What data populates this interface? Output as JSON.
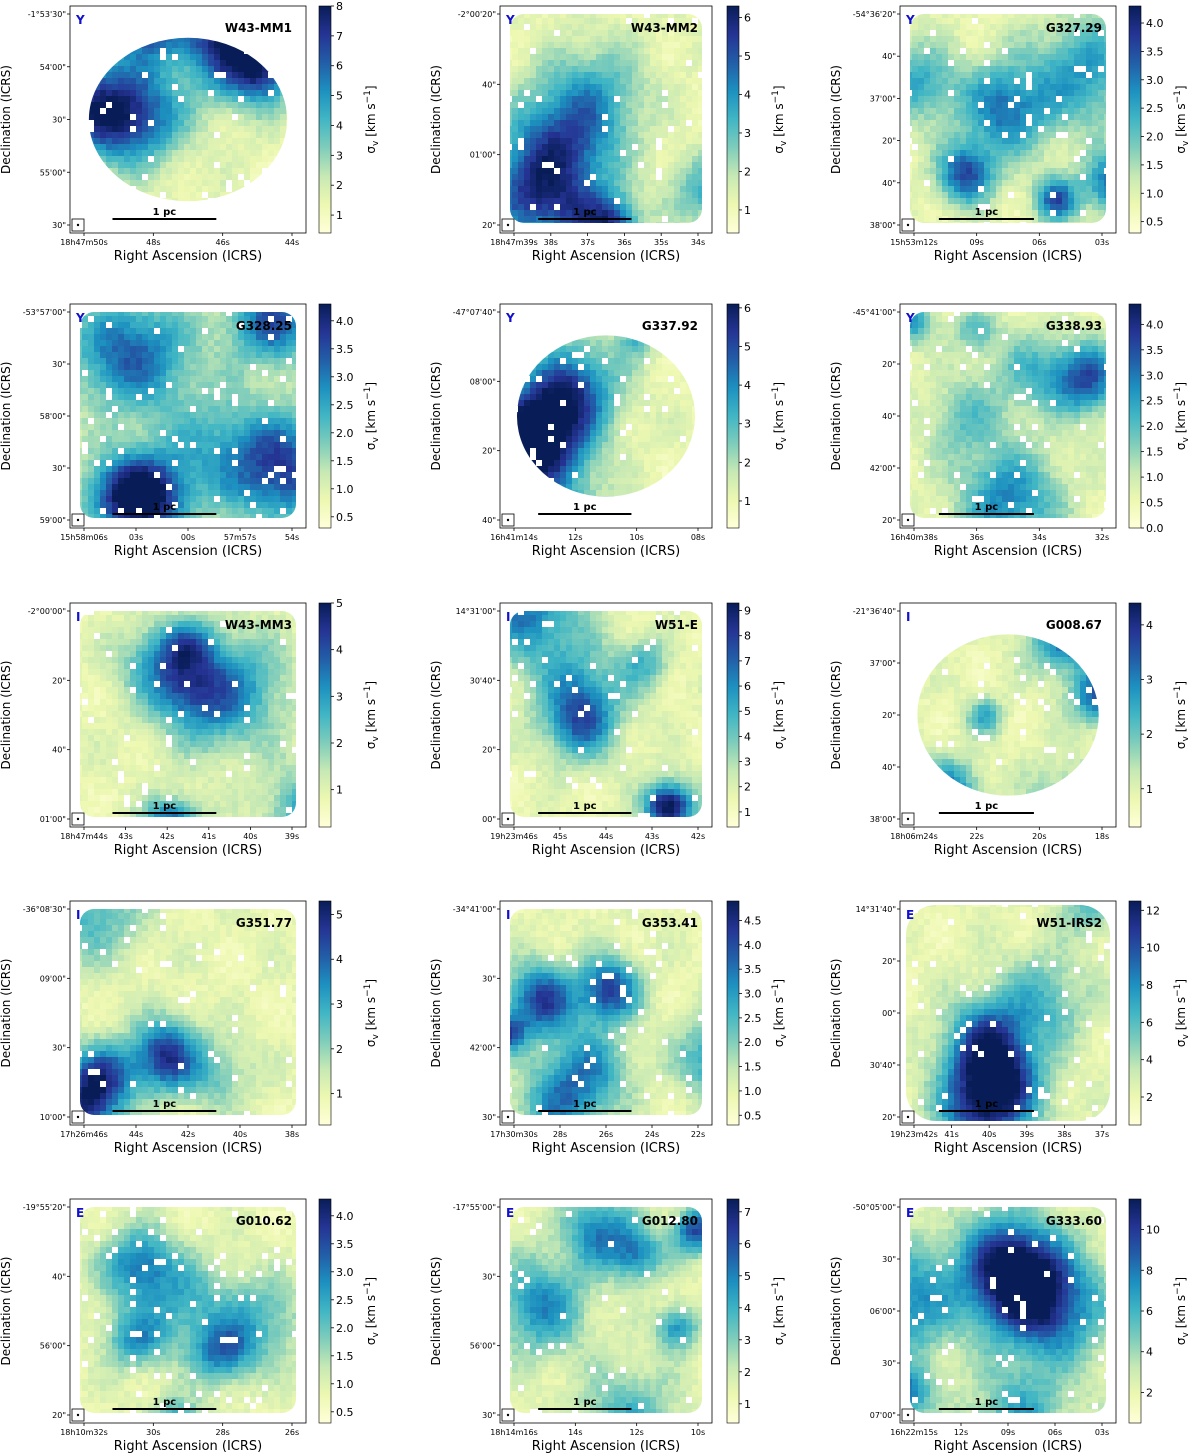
{
  "figure": {
    "x_axis_label": "Right Ascension (ICRS)",
    "y_axis_label": "Declination (ICRS)",
    "colorbar_label_symbol": "σ",
    "colorbar_label_sub": "v",
    "colorbar_label_units": "[km s",
    "colorbar_label_exp": "−1",
    "colorbar_label_close": "]",
    "scale_bar_label": "1 pc",
    "colormap": "YlGnBu",
    "colormap_stops": [
      "#ffffd9",
      "#edf8b1",
      "#c7e9b4",
      "#7fcdbb",
      "#41b6c4",
      "#1d91c0",
      "#225ea8",
      "#253494",
      "#081d58"
    ],
    "stage_color": "#1111cc"
  },
  "chart_data": [
    {
      "type": "heatmap",
      "title": "W43-MM1",
      "stage": "Y",
      "quantity": "velocity dispersion",
      "units": "km s^-1",
      "colorbar_ticks": [
        "1",
        "2",
        "3",
        "4",
        "5",
        "6",
        "7",
        "8"
      ],
      "colorbar_range": [
        0.4,
        8
      ],
      "ra_ticks": [
        "18h47m50s",
        "48s",
        "46s",
        "44s"
      ],
      "dec_ticks": [
        "-1°53'30\"",
        "54'00\"",
        "30\"",
        "55'00\"",
        "30\""
      ]
    },
    {
      "type": "heatmap",
      "title": "W43-MM2",
      "stage": "Y",
      "quantity": "velocity dispersion",
      "units": "km s^-1",
      "colorbar_ticks": [
        "1",
        "2",
        "3",
        "4",
        "5",
        "6"
      ],
      "colorbar_range": [
        0.4,
        6.3
      ],
      "ra_ticks": [
        "18h47m39s",
        "38s",
        "37s",
        "36s",
        "35s",
        "34s"
      ],
      "dec_ticks": [
        "-2°00'20\"",
        "40\"",
        "01'00\"",
        "20\""
      ]
    },
    {
      "type": "heatmap",
      "title": "G327.29",
      "stage": "Y",
      "quantity": "velocity dispersion",
      "units": "km s^-1",
      "colorbar_ticks": [
        "0.5",
        "1.0",
        "1.5",
        "2.0",
        "2.5",
        "3.0",
        "3.5",
        "4.0"
      ],
      "colorbar_range": [
        0.3,
        4.3
      ],
      "ra_ticks": [
        "15h53m12s",
        "09s",
        "06s",
        "03s"
      ],
      "dec_ticks": [
        "-54°36'20\"",
        "40\"",
        "37'00\"",
        "20\"",
        "40\"",
        "38'00\""
      ]
    },
    {
      "type": "heatmap",
      "title": "G328.25",
      "stage": "Y",
      "quantity": "velocity dispersion",
      "units": "km s^-1",
      "colorbar_ticks": [
        "0.5",
        "1.0",
        "1.5",
        "2.0",
        "2.5",
        "3.0",
        "3.5",
        "4.0"
      ],
      "colorbar_range": [
        0.3,
        4.3
      ],
      "ra_ticks": [
        "15h58m06s",
        "03s",
        "00s",
        "57m57s",
        "54s"
      ],
      "dec_ticks": [
        "-53°57'00\"",
        "30\"",
        "58'00\"",
        "30\"",
        "59'00\""
      ]
    },
    {
      "type": "heatmap",
      "title": "G337.92",
      "stage": "Y",
      "quantity": "velocity dispersion",
      "units": "km s^-1",
      "colorbar_ticks": [
        "1",
        "2",
        "3",
        "4",
        "5",
        "6"
      ],
      "colorbar_range": [
        0.3,
        6.1
      ],
      "ra_ticks": [
        "16h41m14s",
        "12s",
        "10s",
        "08s"
      ],
      "dec_ticks": [
        "-47°07'40\"",
        "08'00\"",
        "20\"",
        "40\""
      ]
    },
    {
      "type": "heatmap",
      "title": "G338.93",
      "stage": "Y",
      "quantity": "velocity dispersion",
      "units": "km s^-1",
      "colorbar_ticks": [
        "0.0",
        "0.5",
        "1.0",
        "1.5",
        "2.0",
        "2.5",
        "3.0",
        "3.5",
        "4.0"
      ],
      "colorbar_range": [
        0,
        4.4
      ],
      "ra_ticks": [
        "16h40m38s",
        "36s",
        "34s",
        "32s"
      ],
      "dec_ticks": [
        "-45°41'00\"",
        "20\"",
        "40\"",
        "42'00\"",
        "20\""
      ]
    },
    {
      "type": "heatmap",
      "title": "W43-MM3",
      "stage": "I",
      "quantity": "velocity dispersion",
      "units": "km s^-1",
      "colorbar_ticks": [
        "1",
        "2",
        "3",
        "4",
        "5"
      ],
      "colorbar_range": [
        0.2,
        5
      ],
      "ra_ticks": [
        "18h47m44s",
        "43s",
        "42s",
        "41s",
        "40s",
        "39s"
      ],
      "dec_ticks": [
        "-2°00'00\"",
        "20\"",
        "40\"",
        "01'00\""
      ]
    },
    {
      "type": "heatmap",
      "title": "W51-E",
      "stage": "I",
      "quantity": "velocity dispersion",
      "units": "km s^-1",
      "colorbar_ticks": [
        "1",
        "2",
        "3",
        "4",
        "5",
        "6",
        "7",
        "8",
        "9"
      ],
      "colorbar_range": [
        0.4,
        9.3
      ],
      "ra_ticks": [
        "19h23m46s",
        "45s",
        "44s",
        "43s",
        "42s"
      ],
      "dec_ticks": [
        "14°31'00\"",
        "30'40\"",
        "20\"",
        "00\""
      ]
    },
    {
      "type": "heatmap",
      "title": "G008.67",
      "stage": "I",
      "quantity": "velocity dispersion",
      "units": "km s^-1",
      "colorbar_ticks": [
        "1",
        "2",
        "3",
        "4"
      ],
      "colorbar_range": [
        0.3,
        4.4
      ],
      "ra_ticks": [
        "18h06m24s",
        "22s",
        "20s",
        "18s"
      ],
      "dec_ticks": [
        "-21°36'40\"",
        "37'00\"",
        "20\"",
        "40\"",
        "38'00\""
      ]
    },
    {
      "type": "heatmap",
      "title": "G351.77",
      "stage": "I",
      "quantity": "velocity dispersion",
      "units": "km s^-1",
      "colorbar_ticks": [
        "1",
        "2",
        "3",
        "4",
        "5"
      ],
      "colorbar_range": [
        0.3,
        5.3
      ],
      "ra_ticks": [
        "17h26m46s",
        "44s",
        "42s",
        "40s",
        "38s"
      ],
      "dec_ticks": [
        "-36°08'30\"",
        "09'00\"",
        "30\"",
        "10'00\""
      ]
    },
    {
      "type": "heatmap",
      "title": "G353.41",
      "stage": "I",
      "quantity": "velocity dispersion",
      "units": "km s^-1",
      "colorbar_ticks": [
        "0.5",
        "1.0",
        "1.5",
        "2.0",
        "2.5",
        "3.0",
        "3.5",
        "4.0",
        "4.5"
      ],
      "colorbar_range": [
        0.3,
        4.9
      ],
      "ra_ticks": [
        "17h30m30s",
        "28s",
        "26s",
        "24s",
        "22s"
      ],
      "dec_ticks": [
        "-34°41'00\"",
        "30\"",
        "42'00\"",
        "30\""
      ]
    },
    {
      "type": "heatmap",
      "title": "W51-IRS2",
      "stage": "E",
      "quantity": "velocity dispersion",
      "units": "km s^-1",
      "colorbar_ticks": [
        "2",
        "4",
        "6",
        "8",
        "10",
        "12"
      ],
      "colorbar_range": [
        0.5,
        12.5
      ],
      "ra_ticks": [
        "19h23m42s",
        "41s",
        "40s",
        "39s",
        "38s",
        "37s"
      ],
      "dec_ticks": [
        "14°31'40\"",
        "20\"",
        "00\"",
        "30'40\"",
        "20\""
      ]
    },
    {
      "type": "heatmap",
      "title": "G010.62",
      "stage": "E",
      "quantity": "velocity dispersion",
      "units": "km s^-1",
      "colorbar_ticks": [
        "0.5",
        "1.0",
        "1.5",
        "2.0",
        "2.5",
        "3.0",
        "3.5",
        "4.0"
      ],
      "colorbar_range": [
        0.3,
        4.3
      ],
      "ra_ticks": [
        "18h10m32s",
        "30s",
        "28s",
        "26s"
      ],
      "dec_ticks": [
        "-19°55'20\"",
        "40\"",
        "56'00\"",
        "20\""
      ]
    },
    {
      "type": "heatmap",
      "title": "G012.80",
      "stage": "E",
      "quantity": "velocity dispersion",
      "units": "km s^-1",
      "colorbar_ticks": [
        "1",
        "2",
        "3",
        "4",
        "5",
        "6",
        "7"
      ],
      "colorbar_range": [
        0.4,
        7.4
      ],
      "ra_ticks": [
        "18h14m16s",
        "14s",
        "12s",
        "10s"
      ],
      "dec_ticks": [
        "-17°55'00\"",
        "30\"",
        "56'00\"",
        "30\""
      ]
    },
    {
      "type": "heatmap",
      "title": "G333.60",
      "stage": "E",
      "quantity": "velocity dispersion",
      "units": "km s^-1",
      "colorbar_ticks": [
        "2",
        "4",
        "6",
        "8",
        "10"
      ],
      "colorbar_range": [
        0.5,
        11.5
      ],
      "ra_ticks": [
        "16h22m15s",
        "12s",
        "09s",
        "06s",
        "03s"
      ],
      "dec_ticks": [
        "-50°05'00\"",
        "30\"",
        "06'00\"",
        "30\"",
        "07'00\""
      ]
    }
  ]
}
